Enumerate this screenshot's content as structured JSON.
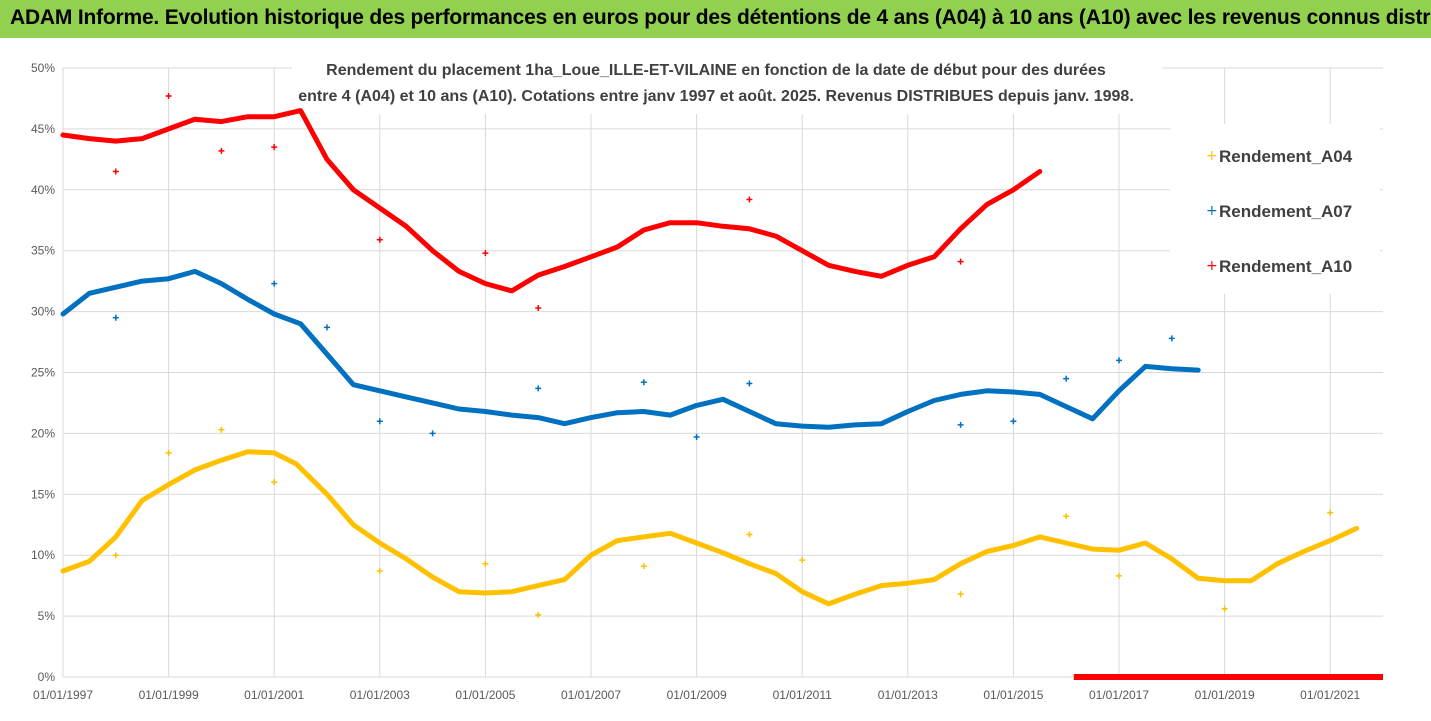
{
  "header": {
    "title": "ADAM Informe. Evolution historique des performances en euros pour des détentions de 4 ans (A04) à 10 ans (A10) avec les revenus connus distribués"
  },
  "colors": {
    "banner": "#92d050",
    "A04": "#ffc000",
    "A07": "#0070c0",
    "A10": "#ff0000",
    "grid": "#d9d9d9"
  },
  "chart_data": {
    "type": "scatter",
    "subtitle_lines": [
      "Rendement du placement 1ha_Loue_ILLE-ET-VILAINE  en fonction de la date de début pour des durées",
      "entre 4 (A04) et 10 ans (A10). Cotations entre janv 1997 et août. 2025. Revenus DISTRIBUES depuis janv. 1998."
    ],
    "x_ticks": [
      "01/01/1997",
      "01/01/1999",
      "01/01/2001",
      "01/01/2003",
      "01/01/2005",
      "01/01/2007",
      "01/01/2009",
      "01/01/2011",
      "01/01/2013",
      "01/01/2015",
      "01/01/2017",
      "01/01/2019",
      "01/01/2021"
    ],
    "y_ticks": [
      "0%",
      "5%",
      "10%",
      "15%",
      "20%",
      "25%",
      "30%",
      "35%",
      "40%",
      "45%",
      "50%"
    ],
    "xlim": [
      "1997-01-01",
      "2022-01-01"
    ],
    "ylim": [
      0,
      50
    ],
    "legend_position": "right",
    "series": [
      {
        "name": "Rendement_A04",
        "points": [
          [
            "1997-01",
            8.7
          ],
          [
            "1997-07",
            9.5
          ],
          [
            "1998-01",
            11.5
          ],
          [
            "1998-07",
            14.5
          ],
          [
            "1999-01",
            15.8
          ],
          [
            "1999-07",
            17
          ],
          [
            "2000-01",
            17.8
          ],
          [
            "2000-07",
            18.5
          ],
          [
            "2001-01",
            18.4
          ],
          [
            "2001-06",
            17.5
          ],
          [
            "2002-01",
            15
          ],
          [
            "2002-07",
            12.5
          ],
          [
            "2003-01",
            11
          ],
          [
            "2003-07",
            9.7
          ],
          [
            "2004-01",
            8.2
          ],
          [
            "2004-07",
            7
          ],
          [
            "2005-01",
            6.9
          ],
          [
            "2005-07",
            7
          ],
          [
            "2006-01",
            7.5
          ],
          [
            "2006-07",
            8
          ],
          [
            "2007-01",
            10
          ],
          [
            "2007-07",
            11.2
          ],
          [
            "2008-01",
            11.5
          ],
          [
            "2008-07",
            11.8
          ],
          [
            "2009-01",
            11
          ],
          [
            "2009-07",
            10.2
          ],
          [
            "2010-01",
            9.3
          ],
          [
            "2010-07",
            8.5
          ],
          [
            "2011-01",
            7
          ],
          [
            "2011-07",
            6
          ],
          [
            "2012-01",
            6.8
          ],
          [
            "2012-07",
            7.5
          ],
          [
            "2013-01",
            7.7
          ],
          [
            "2013-07",
            8
          ],
          [
            "2014-01",
            9.3
          ],
          [
            "2014-07",
            10.3
          ],
          [
            "2015-01",
            10.8
          ],
          [
            "2015-07",
            11.5
          ],
          [
            "2016-01",
            11
          ],
          [
            "2016-07",
            10.5
          ],
          [
            "2017-01",
            10.4
          ],
          [
            "2017-07",
            11
          ],
          [
            "2018-01",
            9.7
          ],
          [
            "2018-07",
            8.1
          ],
          [
            "2019-01",
            7.9
          ],
          [
            "2019-07",
            7.9
          ],
          [
            "2020-01",
            9.3
          ],
          [
            "2020-07",
            10.3
          ],
          [
            "2021-01",
            11.2
          ],
          [
            "2021-07",
            12.2
          ]
        ],
        "outliers": [
          [
            "1998-01",
            10
          ],
          [
            "1999-01",
            18.4
          ],
          [
            "2000-01",
            20.3
          ],
          [
            "2001-01",
            16
          ],
          [
            "2003-01",
            8.7
          ],
          [
            "2005-01",
            9.3
          ],
          [
            "2006-01",
            5.1
          ],
          [
            "2008-01",
            9.1
          ],
          [
            "2010-01",
            11.7
          ],
          [
            "2011-01",
            9.6
          ],
          [
            "2014-01",
            6.8
          ],
          [
            "2016-01",
            13.2
          ],
          [
            "2017-01",
            8.3
          ],
          [
            "2019-01",
            5.6
          ],
          [
            "2021-01",
            13.5
          ]
        ]
      },
      {
        "name": "Rendement_A07",
        "points": [
          [
            "1997-01",
            29.8
          ],
          [
            "1997-07",
            31.5
          ],
          [
            "1998-01",
            32
          ],
          [
            "1998-07",
            32.5
          ],
          [
            "1999-01",
            32.7
          ],
          [
            "1999-07",
            33.3
          ],
          [
            "2000-01",
            32.3
          ],
          [
            "2000-07",
            31
          ],
          [
            "2001-01",
            29.8
          ],
          [
            "2001-07",
            29
          ],
          [
            "2002-01",
            26.5
          ],
          [
            "2002-07",
            24
          ],
          [
            "2003-01",
            23.5
          ],
          [
            "2003-07",
            23
          ],
          [
            "2004-01",
            22.5
          ],
          [
            "2004-07",
            22
          ],
          [
            "2005-01",
            21.8
          ],
          [
            "2005-07",
            21.5
          ],
          [
            "2006-01",
            21.3
          ],
          [
            "2006-07",
            20.8
          ],
          [
            "2007-01",
            21.3
          ],
          [
            "2007-07",
            21.7
          ],
          [
            "2008-01",
            21.8
          ],
          [
            "2008-07",
            21.5
          ],
          [
            "2009-01",
            22.3
          ],
          [
            "2009-07",
            22.8
          ],
          [
            "2010-01",
            21.8
          ],
          [
            "2010-07",
            20.8
          ],
          [
            "2011-01",
            20.6
          ],
          [
            "2011-07",
            20.5
          ],
          [
            "2012-01",
            20.7
          ],
          [
            "2012-07",
            20.8
          ],
          [
            "2013-01",
            21.8
          ],
          [
            "2013-07",
            22.7
          ],
          [
            "2014-01",
            23.2
          ],
          [
            "2014-07",
            23.5
          ],
          [
            "2015-01",
            23.4
          ],
          [
            "2015-07",
            23.2
          ],
          [
            "2016-01",
            22.2
          ],
          [
            "2016-07",
            21.2
          ],
          [
            "2017-01",
            23.5
          ],
          [
            "2017-07",
            25.5
          ],
          [
            "2018-01",
            25.3
          ],
          [
            "2018-07",
            25.2
          ]
        ],
        "outliers": [
          [
            "1998-01",
            29.5
          ],
          [
            "2001-01",
            32.3
          ],
          [
            "2002-01",
            28.7
          ],
          [
            "2003-01",
            21
          ],
          [
            "2004-01",
            20
          ],
          [
            "2006-01",
            23.7
          ],
          [
            "2008-01",
            24.2
          ],
          [
            "2009-01",
            19.7
          ],
          [
            "2010-01",
            24.1
          ],
          [
            "2014-01",
            20.7
          ],
          [
            "2015-01",
            21
          ],
          [
            "2016-01",
            24.5
          ],
          [
            "2017-01",
            26
          ],
          [
            "2018-01",
            27.8
          ]
        ]
      },
      {
        "name": "Rendement_A10",
        "points": [
          [
            "1997-01",
            44.5
          ],
          [
            "1997-07",
            44.2
          ],
          [
            "1998-01",
            44
          ],
          [
            "1998-07",
            44.2
          ],
          [
            "1999-01",
            45
          ],
          [
            "1999-07",
            45.8
          ],
          [
            "2000-01",
            45.6
          ],
          [
            "2000-07",
            46
          ],
          [
            "2001-01",
            46
          ],
          [
            "2001-07",
            46.5
          ],
          [
            "2002-01",
            42.5
          ],
          [
            "2002-07",
            40
          ],
          [
            "2003-01",
            38.5
          ],
          [
            "2003-07",
            37
          ],
          [
            "2004-01",
            35
          ],
          [
            "2004-07",
            33.3
          ],
          [
            "2005-01",
            32.3
          ],
          [
            "2005-07",
            31.7
          ],
          [
            "2006-01",
            33
          ],
          [
            "2006-07",
            33.7
          ],
          [
            "2007-01",
            34.5
          ],
          [
            "2007-07",
            35.3
          ],
          [
            "2008-01",
            36.7
          ],
          [
            "2008-07",
            37.3
          ],
          [
            "2009-01",
            37.3
          ],
          [
            "2009-07",
            37
          ],
          [
            "2010-01",
            36.8
          ],
          [
            "2010-07",
            36.2
          ],
          [
            "2011-01",
            35
          ],
          [
            "2011-07",
            33.8
          ],
          [
            "2012-01",
            33.3
          ],
          [
            "2012-07",
            32.9
          ],
          [
            "2013-01",
            33.8
          ],
          [
            "2013-07",
            34.5
          ],
          [
            "2014-01",
            36.8
          ],
          [
            "2014-07",
            38.8
          ],
          [
            "2015-01",
            40
          ],
          [
            "2015-07",
            41.5
          ]
        ],
        "outliers": [
          [
            "1998-01",
            41.5
          ],
          [
            "1999-01",
            47.7
          ],
          [
            "2000-01",
            43.2
          ],
          [
            "2001-01",
            43.5
          ],
          [
            "2003-01",
            35.9
          ],
          [
            "2005-01",
            34.8
          ],
          [
            "2006-01",
            30.3
          ],
          [
            "2010-01",
            39.2
          ],
          [
            "2014-01",
            34.1
          ]
        ],
        "zero_from": "2015-07"
      }
    ]
  }
}
